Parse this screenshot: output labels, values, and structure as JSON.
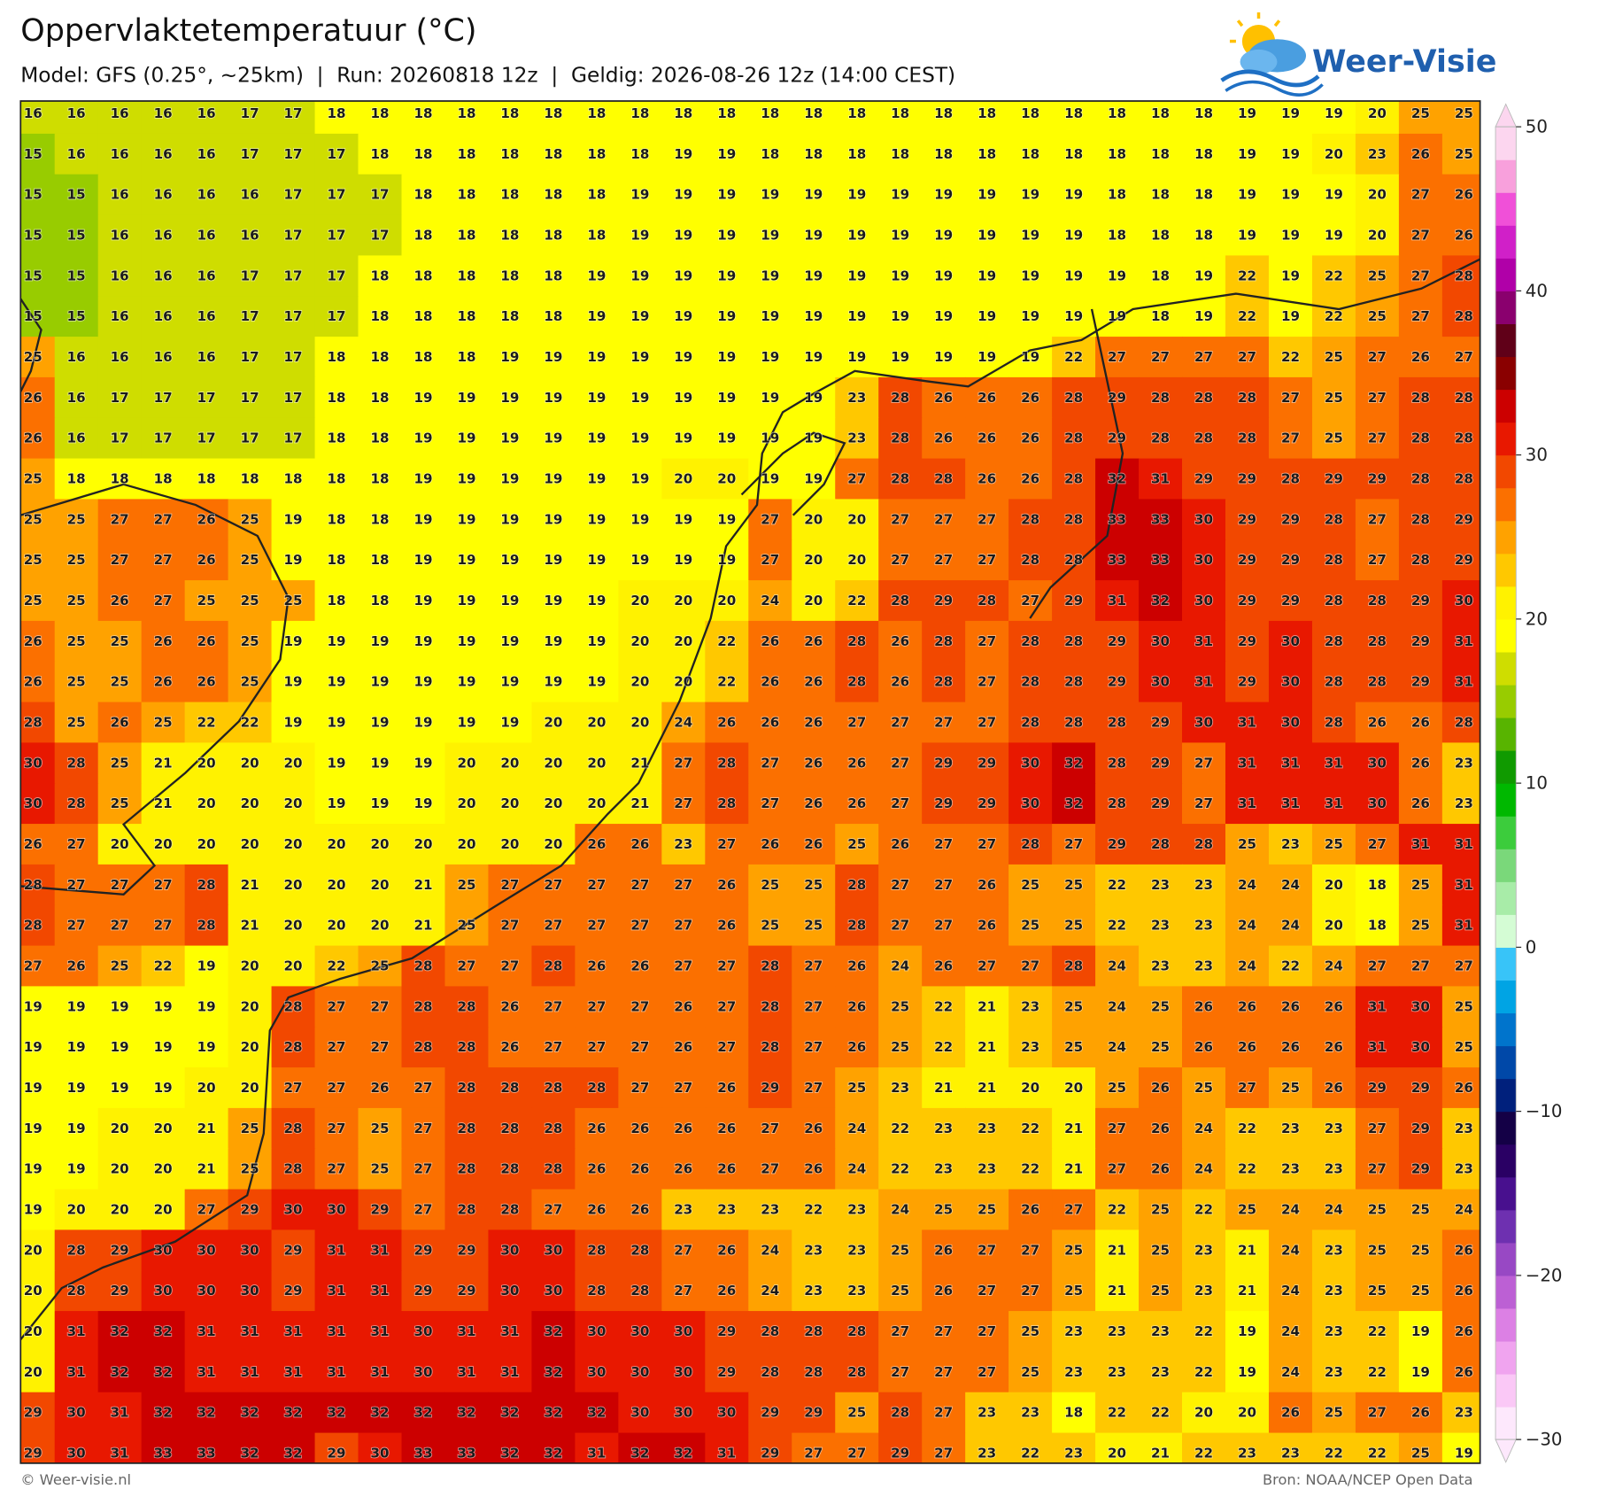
{
  "header": {
    "title": "Oppervlaktetemperatuur (°C)",
    "subtitle": "Model: GFS (0.25°, ~25km)  |  Run: 20260818 12z  |  Geldig: 2026-08-26 12z (14:00 CEST)",
    "logo": "Weer-Visie"
  },
  "map": {
    "values": [
      [
        16,
        16,
        16,
        16,
        16,
        17,
        17,
        18,
        18,
        18,
        18,
        18,
        18,
        18,
        18,
        18,
        18,
        18,
        18,
        18,
        18,
        18,
        18,
        18,
        18,
        18,
        18,
        18,
        19,
        19,
        19,
        20,
        25,
        25
      ],
      [
        15,
        16,
        16,
        16,
        16,
        17,
        17,
        17,
        18,
        18,
        18,
        18,
        18,
        18,
        18,
        19,
        19,
        18,
        18,
        18,
        18,
        18,
        18,
        18,
        18,
        18,
        18,
        18,
        19,
        19,
        20,
        23,
        26,
        25
      ],
      [
        15,
        15,
        16,
        16,
        16,
        16,
        17,
        17,
        17,
        18,
        18,
        18,
        18,
        18,
        19,
        19,
        19,
        19,
        19,
        19,
        19,
        19,
        19,
        19,
        19,
        18,
        18,
        18,
        19,
        19,
        19,
        20,
        27,
        26
      ],
      [
        15,
        15,
        16,
        16,
        16,
        16,
        17,
        17,
        17,
        18,
        18,
        18,
        18,
        18,
        19,
        19,
        19,
        19,
        19,
        19,
        19,
        19,
        19,
        19,
        19,
        18,
        18,
        18,
        19,
        19,
        19,
        20,
        27,
        26
      ],
      [
        15,
        15,
        16,
        16,
        16,
        17,
        17,
        17,
        18,
        18,
        18,
        18,
        18,
        19,
        19,
        19,
        19,
        19,
        19,
        19,
        19,
        19,
        19,
        19,
        19,
        19,
        18,
        19,
        22,
        19,
        22,
        25,
        27,
        28
      ],
      [
        15,
        15,
        16,
        16,
        16,
        17,
        17,
        17,
        18,
        18,
        18,
        18,
        18,
        19,
        19,
        19,
        19,
        19,
        19,
        19,
        19,
        19,
        19,
        19,
        19,
        19,
        18,
        19,
        22,
        19,
        22,
        25,
        27,
        28
      ],
      [
        25,
        16,
        16,
        16,
        16,
        17,
        17,
        18,
        18,
        18,
        18,
        19,
        19,
        19,
        19,
        19,
        19,
        19,
        19,
        19,
        19,
        19,
        19,
        19,
        22,
        27,
        27,
        27,
        27,
        22,
        25,
        27,
        26,
        27
      ],
      [
        26,
        16,
        17,
        17,
        17,
        17,
        17,
        18,
        18,
        19,
        19,
        19,
        19,
        19,
        19,
        19,
        19,
        19,
        19,
        23,
        28,
        26,
        26,
        26,
        28,
        29,
        28,
        28,
        28,
        27,
        25,
        27,
        28,
        28
      ],
      [
        26,
        16,
        17,
        17,
        17,
        17,
        17,
        18,
        18,
        19,
        19,
        19,
        19,
        19,
        19,
        19,
        19,
        19,
        19,
        23,
        28,
        26,
        26,
        26,
        28,
        29,
        28,
        28,
        28,
        27,
        25,
        27,
        28,
        28
      ],
      [
        25,
        18,
        18,
        18,
        18,
        18,
        18,
        18,
        18,
        19,
        19,
        19,
        19,
        19,
        19,
        20,
        20,
        19,
        19,
        27,
        28,
        28,
        26,
        26,
        28,
        32,
        31,
        29,
        29,
        28,
        29,
        29,
        28,
        28
      ],
      [
        25,
        25,
        27,
        27,
        26,
        25,
        19,
        18,
        18,
        19,
        19,
        19,
        19,
        19,
        19,
        19,
        19,
        27,
        20,
        20,
        27,
        27,
        27,
        28,
        28,
        33,
        33,
        30,
        29,
        29,
        28,
        27,
        28,
        29
      ],
      [
        25,
        25,
        27,
        27,
        26,
        25,
        19,
        18,
        18,
        19,
        19,
        19,
        19,
        19,
        19,
        19,
        19,
        27,
        20,
        20,
        27,
        27,
        27,
        28,
        28,
        33,
        33,
        30,
        29,
        29,
        28,
        27,
        28,
        29
      ],
      [
        25,
        25,
        26,
        27,
        25,
        25,
        25,
        18,
        18,
        19,
        19,
        19,
        19,
        19,
        20,
        20,
        20,
        24,
        20,
        22,
        28,
        29,
        28,
        27,
        29,
        31,
        32,
        30,
        29,
        29,
        28,
        28,
        29,
        30
      ],
      [
        26,
        25,
        25,
        26,
        26,
        25,
        19,
        19,
        19,
        19,
        19,
        19,
        19,
        19,
        20,
        20,
        22,
        26,
        26,
        28,
        26,
        28,
        27,
        28,
        28,
        29,
        30,
        31,
        29,
        30,
        28,
        28,
        29,
        31
      ],
      [
        26,
        25,
        25,
        26,
        26,
        25,
        19,
        19,
        19,
        19,
        19,
        19,
        19,
        19,
        20,
        20,
        22,
        26,
        26,
        28,
        26,
        28,
        27,
        28,
        28,
        29,
        30,
        31,
        29,
        30,
        28,
        28,
        29,
        31
      ],
      [
        28,
        25,
        26,
        25,
        22,
        22,
        19,
        19,
        19,
        19,
        19,
        19,
        20,
        20,
        20,
        24,
        26,
        26,
        26,
        27,
        27,
        27,
        27,
        28,
        28,
        28,
        29,
        30,
        31,
        30,
        28,
        26,
        26,
        28
      ],
      [
        30,
        28,
        25,
        21,
        20,
        20,
        20,
        19,
        19,
        19,
        20,
        20,
        20,
        20,
        21,
        27,
        28,
        27,
        26,
        26,
        27,
        29,
        29,
        30,
        32,
        28,
        29,
        27,
        31,
        31,
        31,
        30,
        26,
        23
      ],
      [
        30,
        28,
        25,
        21,
        20,
        20,
        20,
        19,
        19,
        19,
        20,
        20,
        20,
        20,
        21,
        27,
        28,
        27,
        26,
        26,
        27,
        29,
        29,
        30,
        32,
        28,
        29,
        27,
        31,
        31,
        31,
        30,
        26,
        23
      ],
      [
        26,
        27,
        20,
        20,
        20,
        20,
        20,
        20,
        20,
        20,
        20,
        20,
        20,
        26,
        26,
        23,
        27,
        26,
        26,
        25,
        26,
        27,
        27,
        28,
        27,
        29,
        28,
        28,
        25,
        23,
        25,
        27,
        31,
        31
      ],
      [
        28,
        27,
        27,
        27,
        28,
        21,
        20,
        20,
        20,
        21,
        25,
        27,
        27,
        27,
        27,
        27,
        26,
        25,
        25,
        28,
        27,
        27,
        26,
        25,
        25,
        22,
        23,
        23,
        24,
        24,
        20,
        18,
        25,
        31
      ],
      [
        28,
        27,
        27,
        27,
        28,
        21,
        20,
        20,
        20,
        21,
        25,
        27,
        27,
        27,
        27,
        27,
        26,
        25,
        25,
        28,
        27,
        27,
        26,
        25,
        25,
        22,
        23,
        23,
        24,
        24,
        20,
        18,
        25,
        31
      ],
      [
        27,
        26,
        25,
        22,
        19,
        20,
        20,
        22,
        25,
        28,
        27,
        27,
        28,
        26,
        26,
        27,
        27,
        28,
        27,
        26,
        24,
        26,
        27,
        27,
        28,
        24,
        23,
        23,
        24,
        22,
        24,
        27,
        27,
        27
      ],
      [
        19,
        19,
        19,
        19,
        19,
        20,
        28,
        27,
        27,
        28,
        28,
        26,
        27,
        27,
        27,
        26,
        27,
        28,
        27,
        26,
        25,
        22,
        21,
        23,
        25,
        24,
        25,
        26,
        26,
        26,
        26,
        31,
        30,
        25
      ],
      [
        19,
        19,
        19,
        19,
        19,
        20,
        28,
        27,
        27,
        28,
        28,
        26,
        27,
        27,
        27,
        26,
        27,
        28,
        27,
        26,
        25,
        22,
        21,
        23,
        25,
        24,
        25,
        26,
        26,
        26,
        26,
        31,
        30,
        25
      ],
      [
        19,
        19,
        19,
        19,
        20,
        20,
        27,
        27,
        26,
        27,
        28,
        28,
        28,
        28,
        27,
        27,
        26,
        29,
        27,
        25,
        23,
        21,
        21,
        20,
        20,
        25,
        26,
        25,
        27,
        25,
        26,
        29,
        29,
        26
      ],
      [
        19,
        19,
        20,
        20,
        21,
        25,
        28,
        27,
        25,
        27,
        28,
        28,
        28,
        26,
        26,
        26,
        26,
        27,
        26,
        24,
        22,
        23,
        23,
        22,
        21,
        27,
        26,
        24,
        22,
        23,
        23,
        27,
        29,
        23
      ],
      [
        19,
        19,
        20,
        20,
        21,
        25,
        28,
        27,
        25,
        27,
        28,
        28,
        28,
        26,
        26,
        26,
        26,
        27,
        26,
        24,
        22,
        23,
        23,
        22,
        21,
        27,
        26,
        24,
        22,
        23,
        23,
        27,
        29,
        23
      ],
      [
        19,
        20,
        20,
        20,
        27,
        29,
        30,
        30,
        29,
        27,
        28,
        28,
        27,
        26,
        26,
        23,
        23,
        23,
        22,
        23,
        24,
        25,
        25,
        26,
        27,
        22,
        25,
        22,
        25,
        24,
        24,
        25,
        25,
        24
      ],
      [
        20,
        28,
        29,
        30,
        30,
        30,
        29,
        31,
        31,
        29,
        29,
        30,
        30,
        28,
        28,
        27,
        26,
        24,
        23,
        23,
        25,
        26,
        27,
        27,
        25,
        21,
        25,
        23,
        21,
        24,
        23,
        25,
        25,
        26
      ],
      [
        20,
        28,
        29,
        30,
        30,
        30,
        29,
        31,
        31,
        29,
        29,
        30,
        30,
        28,
        28,
        27,
        26,
        24,
        23,
        23,
        25,
        26,
        27,
        27,
        25,
        21,
        25,
        23,
        21,
        24,
        23,
        25,
        25,
        26
      ],
      [
        20,
        31,
        32,
        32,
        31,
        31,
        31,
        31,
        31,
        30,
        31,
        31,
        32,
        30,
        30,
        30,
        29,
        28,
        28,
        28,
        27,
        27,
        27,
        25,
        23,
        23,
        23,
        22,
        19,
        24,
        23,
        22,
        19,
        26
      ],
      [
        20,
        31,
        32,
        32,
        31,
        31,
        31,
        31,
        31,
        30,
        31,
        31,
        32,
        30,
        30,
        30,
        29,
        28,
        28,
        28,
        27,
        27,
        27,
        25,
        23,
        23,
        23,
        22,
        19,
        24,
        23,
        22,
        19,
        26
      ],
      [
        29,
        30,
        31,
        32,
        32,
        32,
        32,
        32,
        32,
        32,
        32,
        32,
        32,
        32,
        30,
        30,
        30,
        29,
        29,
        25,
        28,
        27,
        23,
        23,
        18,
        22,
        22,
        20,
        20,
        26,
        25,
        27,
        26,
        23
      ],
      [
        29,
        30,
        31,
        33,
        33,
        32,
        32,
        29,
        30,
        33,
        33,
        32,
        32,
        31,
        32,
        32,
        31,
        29,
        27,
        27,
        29,
        27,
        23,
        22,
        23,
        20,
        21,
        22,
        23,
        23,
        22,
        22,
        25,
        19
      ]
    ]
  },
  "colorbar": {
    "lim": [
      -30,
      50
    ],
    "ticks": [
      {
        "value": -30,
        "label": "−30"
      },
      {
        "value": -20,
        "label": "−20"
      },
      {
        "value": -10,
        "label": "−10"
      },
      0,
      10,
      20,
      30,
      40,
      50
    ],
    "colors": [
      "#fde8fc",
      "#fac8f6",
      "#f0a4ef",
      "#dc80e4",
      "#bc60d4",
      "#9848c4",
      "#6e30b0",
      "#48108e",
      "#2a0064",
      "#140046",
      "#00207c",
      "#0048a8",
      "#0074cc",
      "#00a4e4",
      "#38c4f8",
      "#d4fcd4",
      "#a8eca8",
      "#7ad87a",
      "#3ccc3c",
      "#00b800",
      "#109a00",
      "#58b400",
      "#98cc00",
      "#cfdd00",
      "#ffff00",
      "#fff200",
      "#ffc800",
      "#ffa200",
      "#fb7000",
      "#f24800",
      "#e81800",
      "#cc0000",
      "#8a0000",
      "#600018",
      "#8a006e",
      "#b000a8",
      "#d020c8",
      "#f050d8",
      "#f8a0dc",
      "#fcd6ef"
    ]
  },
  "footer": {
    "left": "© Weer-visie.nl",
    "right": "Bron: NOAA/NCEP Open Data"
  }
}
